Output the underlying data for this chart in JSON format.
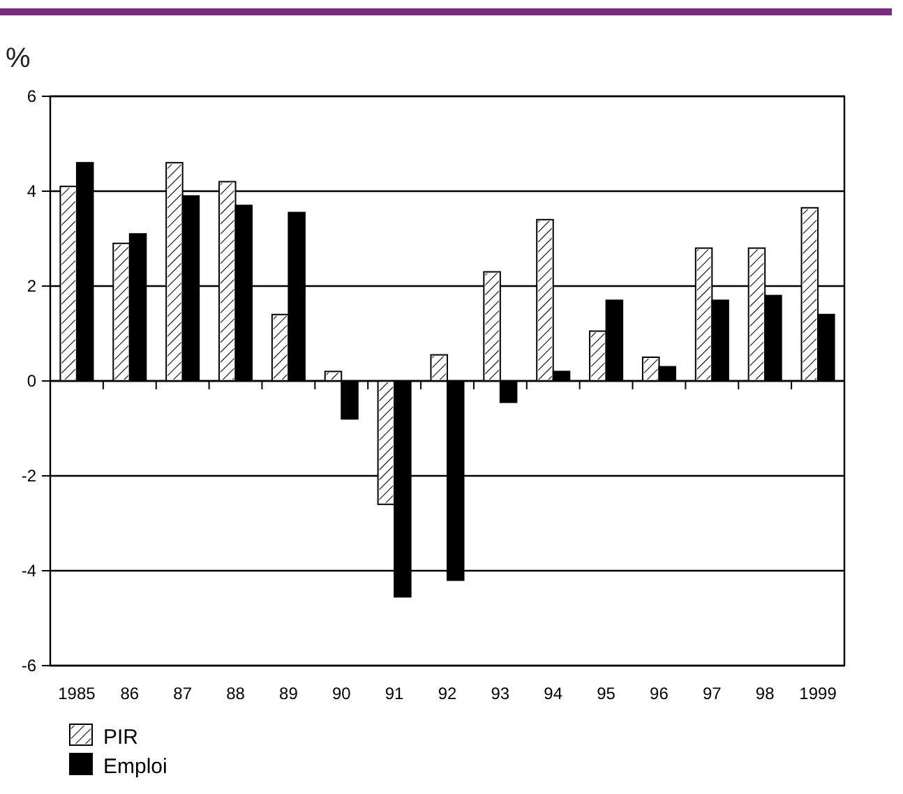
{
  "chart_data": {
    "type": "bar",
    "ylabel": "%",
    "categories": [
      "1985",
      "86",
      "87",
      "88",
      "89",
      "90",
      "91",
      "92",
      "93",
      "94",
      "95",
      "96",
      "97",
      "98",
      "1999"
    ],
    "series": [
      {
        "name": "PIR",
        "color": "#ffffff",
        "values": [
          4.1,
          2.9,
          4.6,
          4.2,
          1.4,
          0.2,
          -2.6,
          0.55,
          2.3,
          3.4,
          1.05,
          0.5,
          2.8,
          2.8,
          3.65
        ]
      },
      {
        "name": "Emploi",
        "color": "#000000",
        "values": [
          4.6,
          3.1,
          3.9,
          3.7,
          3.55,
          -0.8,
          -4.55,
          -4.2,
          -0.45,
          0.2,
          1.7,
          0.3,
          1.7,
          1.8,
          1.4
        ]
      }
    ],
    "ylim": [
      -6,
      6
    ],
    "yticks": [
      -6,
      -4,
      -2,
      0,
      2,
      4,
      6
    ],
    "grid": "y",
    "legend": "bottom left"
  }
}
